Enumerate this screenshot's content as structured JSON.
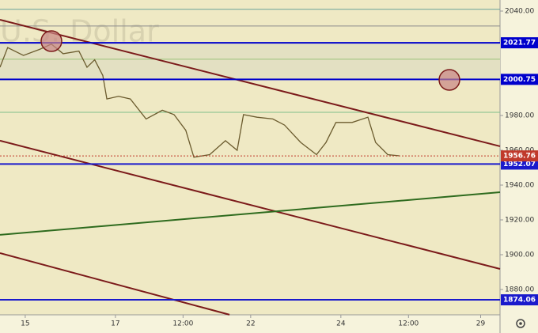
{
  "chart_data": {
    "type": "line",
    "watermark": "U.S. Dollar",
    "x": [
      -0.56,
      -0.39,
      -0.04,
      0.32,
      0.58,
      0.84,
      1.19,
      1.37,
      1.54,
      1.72,
      1.81,
      2.07,
      2.33,
      2.68,
      3.04,
      3.3,
      3.56,
      3.74,
      4.09,
      4.44,
      4.7,
      4.84,
      5.14,
      5.49,
      5.75,
      6.11,
      6.46,
      6.67,
      6.89,
      7.25,
      7.6,
      7.77,
      8.04,
      8.3
    ],
    "series": [
      {
        "color": "#6b5b2e",
        "values": [
          2007.7,
          2019,
          2014.5,
          2018,
          2021,
          2015.5,
          2017,
          2007.7,
          2012,
          2003,
          1989.5,
          1991,
          1989.5,
          1978,
          1983,
          1980.5,
          1971.5,
          1956,
          1957.5,
          1965.5,
          1960,
          1980.5,
          1979,
          1978,
          1974.5,
          1964.5,
          1957.5,
          1964.5,
          1976,
          1976,
          1979,
          1964.5,
          1957.5,
          1956.8
        ]
      }
    ],
    "levels": [
      {
        "value": 2021.77,
        "color": "#0000cc"
      },
      {
        "value": 2000.75,
        "color": "#0000cc"
      },
      {
        "value": 1952.07,
        "color": "#1a1acc"
      },
      {
        "value": 1874.06,
        "color": "#1a1acc"
      }
    ],
    "price_level": {
      "value": 1956.76,
      "color": "#c0392b"
    },
    "guides": [
      {
        "value": 2041,
        "color": "#6aa39a"
      },
      {
        "value": 2031.4,
        "color": "#8c8c8c"
      },
      {
        "value": 2012.3,
        "color": "#9cc27a"
      },
      {
        "value": 1981.8,
        "color": "#7fc08a"
      }
    ],
    "trend_lines": [
      {
        "x": [
          -0.56,
          10.53
        ],
        "values": [
          2035,
          1962.3
        ],
        "color": "#7b1a1a"
      },
      {
        "x": [
          -0.56,
          10.53
        ],
        "values": [
          1965.5,
          1891.8
        ],
        "color": "#7b1a1a"
      },
      {
        "x": [
          -0.56,
          4.53
        ],
        "values": [
          1900.9,
          1865.5
        ],
        "color": "#7b1a1a"
      },
      {
        "x": [
          -0.56,
          10.53
        ],
        "values": [
          1911.4,
          1935.9
        ],
        "color": "#2e6b1e"
      }
    ],
    "xlim": [
      -0.56,
      10.53
    ],
    "ylim": [
      1865.45,
      2046.36
    ],
    "xticks": [
      {
        "value": 0,
        "label": "15"
      },
      {
        "value": 2,
        "label": "17"
      },
      {
        "value": 3.5,
        "label": "12:00"
      },
      {
        "value": 5,
        "label": "22"
      },
      {
        "value": 7,
        "label": "24"
      },
      {
        "value": 8.5,
        "label": "12:00"
      },
      {
        "value": 10.1,
        "label": "29"
      }
    ],
    "yticks": [
      {
        "value": 2040,
        "label": "2040.00"
      },
      {
        "value": 1980,
        "label": "1980.00"
      },
      {
        "value": 1960,
        "label": "1960.00"
      },
      {
        "value": 1940,
        "label": "1940.00"
      },
      {
        "value": 1920,
        "label": "1920.00"
      },
      {
        "value": 1900,
        "label": "1900.00"
      },
      {
        "value": 1880,
        "label": "1880.00"
      }
    ]
  }
}
